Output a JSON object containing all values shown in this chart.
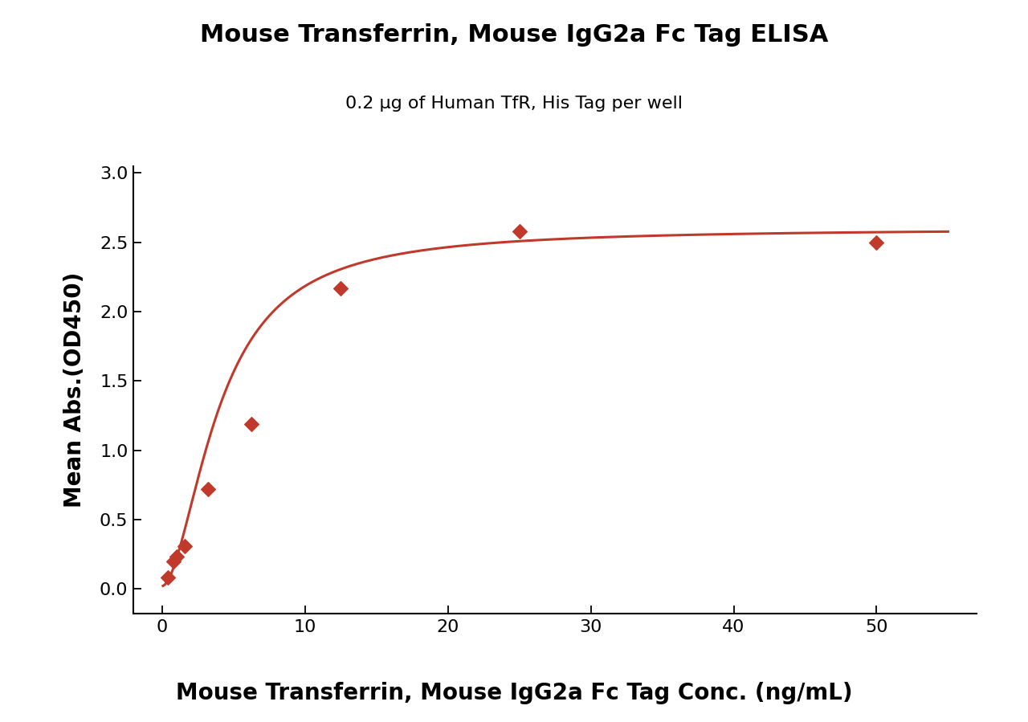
{
  "title": "Mouse Transferrin, Mouse IgG2a Fc Tag ELISA",
  "subtitle": "0.2 μg of Human TfR, His Tag per well",
  "xlabel": "Mouse Transferrin, Mouse IgG2a Fc Tag Conc. (ng/mL)",
  "ylabel": "Mean Abs.(OD450)",
  "x_pts": [
    0.4,
    0.8,
    1.0,
    1.6,
    3.2,
    6.25,
    12.5,
    25.0,
    50.0
  ],
  "y_pts": [
    0.08,
    0.2,
    0.23,
    0.31,
    0.72,
    1.19,
    2.17,
    2.58,
    2.5
  ],
  "xlim": [
    -2,
    57
  ],
  "ylim": [
    -0.18,
    3.05
  ],
  "xticks": [
    0,
    10,
    20,
    30,
    40,
    50
  ],
  "yticks": [
    0.0,
    0.5,
    1.0,
    1.5,
    2.0,
    2.5,
    3.0
  ],
  "color": "#c0392b",
  "marker": "D",
  "markersize": 9,
  "linewidth": 2.2,
  "title_fontsize": 22,
  "subtitle_fontsize": 16,
  "axis_label_fontsize": 20,
  "tick_fontsize": 16,
  "background_color": "#ffffff"
}
